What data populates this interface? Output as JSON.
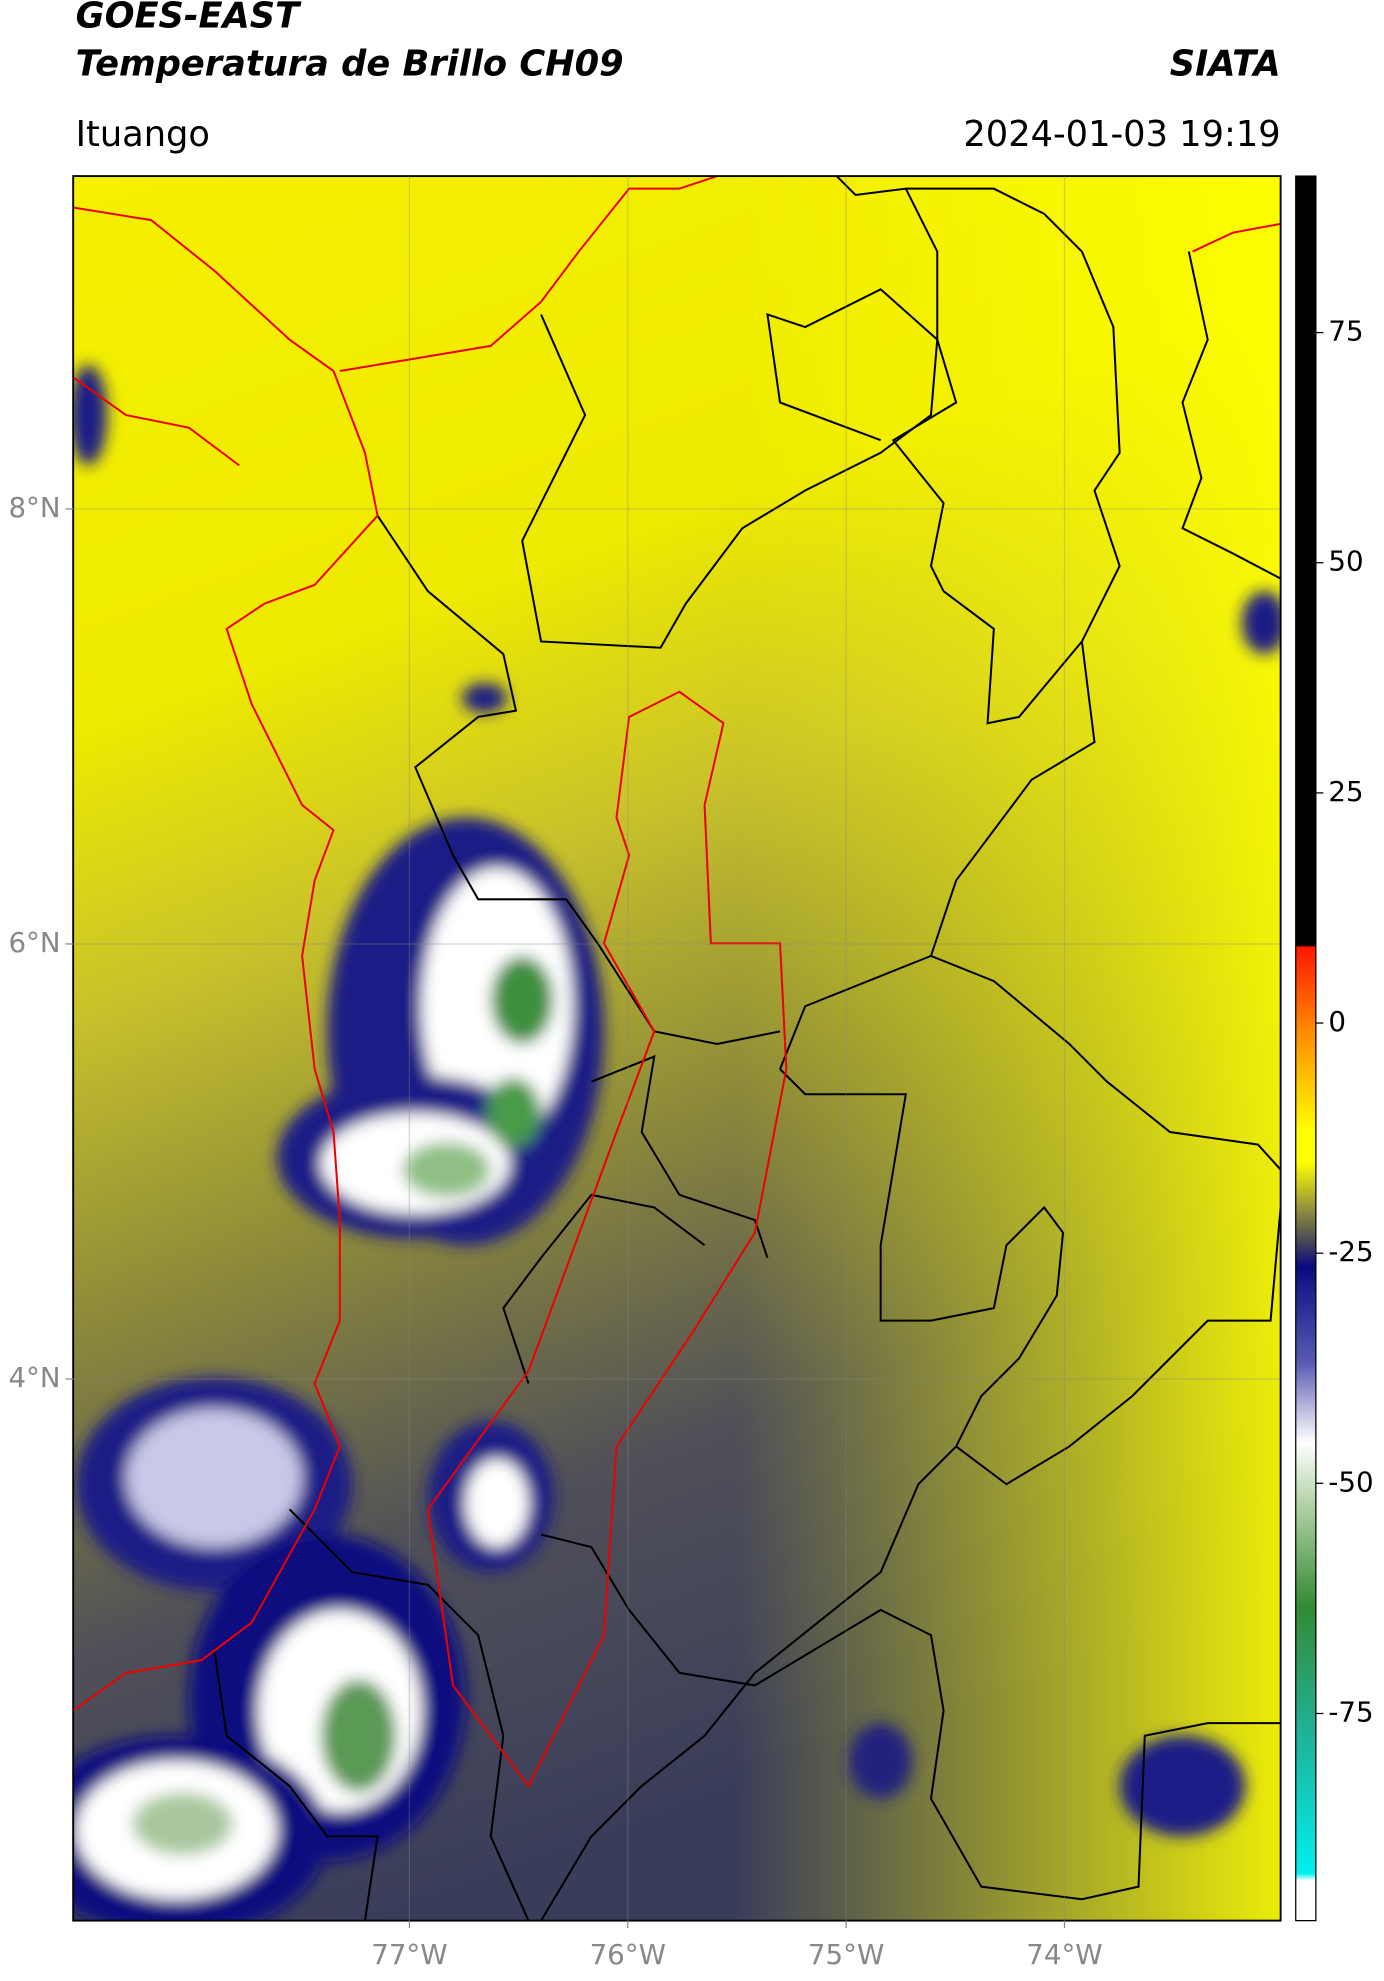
{
  "header": {
    "satellite": "GOES-EAST",
    "product": "Temperatura de Brillo CH09",
    "source": "SIATA",
    "location": "Ituango",
    "datetime": "2024-01-03 19:19"
  },
  "map": {
    "xlim": [
      -78.54,
      -73.01
    ],
    "ylim": [
      1.51,
      9.53
    ],
    "xticks": [
      {
        "value": -77,
        "label": "77°W"
      },
      {
        "value": -76,
        "label": "76°W"
      },
      {
        "value": -75,
        "label": "75°W"
      },
      {
        "value": -74,
        "label": "74°W"
      }
    ],
    "yticks": [
      {
        "value": 8,
        "label": "8°N"
      },
      {
        "value": 6,
        "label": "6°N"
      },
      {
        "value": 4,
        "label": "4°N"
      }
    ],
    "grid": true
  },
  "colorbar": {
    "lim": [
      -97.5,
      92
    ],
    "ticks": [
      75,
      50,
      25,
      0,
      -25,
      -50,
      -75
    ]
  }
}
